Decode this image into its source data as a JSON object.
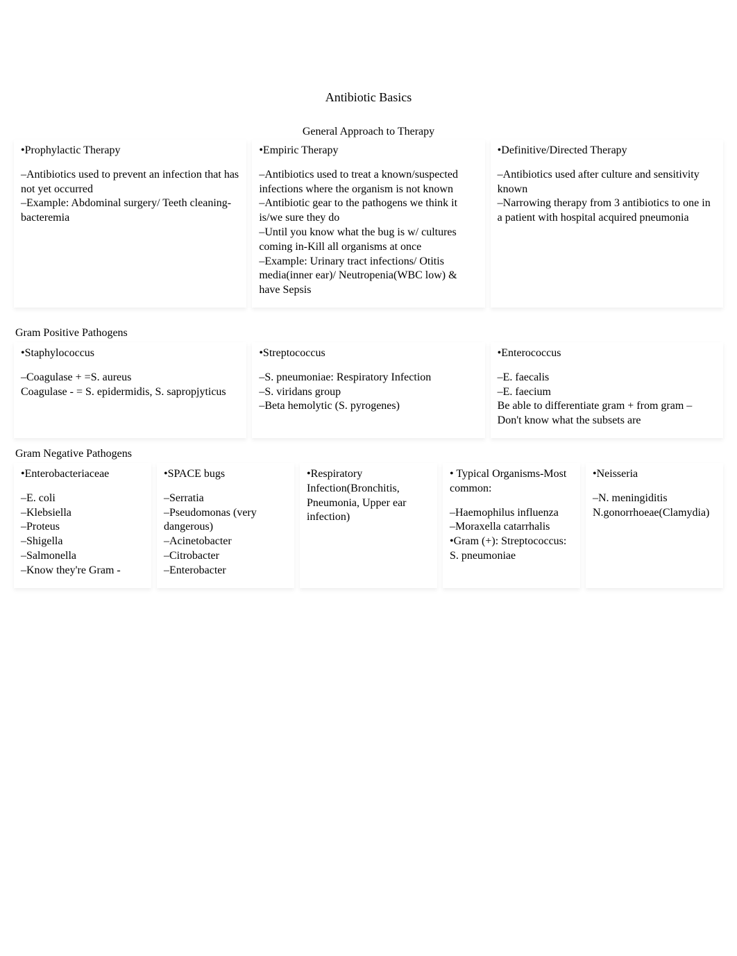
{
  "title": "Antibiotic Basics",
  "section1": {
    "subtitle": "General Approach to Therapy",
    "cards": [
      {
        "heading": "•Prophylactic Therapy",
        "body": "–Antibiotics used to prevent  an infection that has  not yet occurred\n–Example: Abdominal surgery/ Teeth cleaning-bacteremia"
      },
      {
        "heading": "•Empiric Therapy",
        "body": "–Antibiotics used to treat a known/suspected infections   where the organism is not known\n–Antibiotic gear to the pathogens we think it is/we sure they do\n–Until you know what the bug is w/ cultures coming in-Kill all organisms at once\n–Example: Urinary tract infections/ Otitis media(inner ear)/ Neutropenia(WBC low) & have Sepsis"
      },
      {
        "heading": "•Definitive/Directed Therapy",
        "body": "–Antibiotics used after culture and  sensitivity known\n–Narrowing therapy from 3 antibiotics to one in a patient with hospital  acquired pneumonia"
      }
    ]
  },
  "section2": {
    "label": "Gram Positive Pathogens",
    "cards": [
      {
        "heading": "•Staphylococcus",
        "body": "–Coagulase + =S. aureus\nCoagulase - = S. epidermidis, S. sapropjyticus"
      },
      {
        "heading": "•Streptococcus",
        "body": "–S. pneumoniae:  Respiratory Infection\n–S. viridans group\n–Beta hemolytic (S. pyrogenes)"
      },
      {
        "heading": "•Enterococcus",
        "body": "–E. faecalis\n–E. faecium\nBe able to differentiate gram + from gram –\nDon't know what the subsets are"
      }
    ]
  },
  "section3": {
    "label": "Gram Negative Pathogens",
    "cards": [
      {
        "heading": "•Enterobacteriaceae",
        "body": "–E. coli\n–Klebsiella\n–Proteus\n–Shigella\n–Salmonella\n–Know they're Gram -"
      },
      {
        "heading": "•SPACE bugs",
        "body": "–Serratia\n–Pseudomonas (very dangerous)\n–Acinetobacter\n–Citrobacter\n–Enterobacter"
      },
      {
        "heading": "•Respiratory Infection(Bronchitis, Pneumonia, Upper ear infection)",
        "body": ""
      },
      {
        "heading": "• Typical Organisms-Most common:",
        "body": "–Haemophilus influenza\n–Moraxella catarrhalis\n•Gram (+): Streptococcus: S. pneumoniae"
      },
      {
        "heading": "•Neisseria",
        "body": "–N. meningiditis\nN.gonorrhoeae(Clamydia)"
      }
    ]
  }
}
